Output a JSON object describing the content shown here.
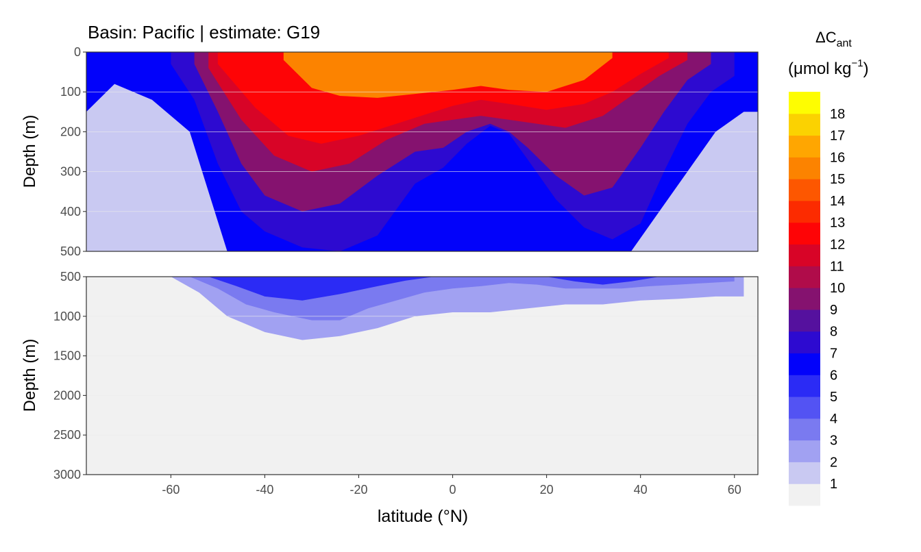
{
  "chart_data": {
    "type": "heatmap",
    "title": "Basin: Pacific | estimate: G19",
    "xlabel": "latitude (°N)",
    "ylabel_top": "Depth (m)",
    "ylabel_bottom": "Depth (m)",
    "x_ticks": [
      "-60",
      "-40",
      "-20",
      "0",
      "20",
      "40",
      "60"
    ],
    "x_tick_values": [
      -60,
      -40,
      -20,
      0,
      20,
      40,
      60
    ],
    "xlim": [
      -78,
      65
    ],
    "top_panel": {
      "ylim": [
        0,
        500
      ],
      "y_ticks": [
        "0",
        "100",
        "200",
        "300",
        "400",
        "500"
      ],
      "y_tick_values": [
        0,
        100,
        200,
        300,
        400,
        500
      ]
    },
    "bottom_panel": {
      "ylim": [
        500,
        3000
      ],
      "y_ticks": [
        "500",
        "1000",
        "1500",
        "2000",
        "2500",
        "3000"
      ],
      "y_tick_values": [
        500,
        1000,
        1500,
        2000,
        2500,
        3000
      ]
    },
    "legend": {
      "title_line1": "ΔC",
      "title_sub": "ant",
      "title_line2": "(μmol kg",
      "title_sup": "−1",
      "title_close": ")",
      "placement": "right",
      "levels": [
        "1",
        "2",
        "3",
        "4",
        "5",
        "6",
        "7",
        "8",
        "9",
        "10",
        "11",
        "12",
        "13",
        "14",
        "15",
        "16",
        "17",
        "18"
      ],
      "colors": [
        "#f1f1f1",
        "#c9c9f2",
        "#a1a1f2",
        "#7a7af0",
        "#5353f3",
        "#2b2bf5",
        "#0202fa",
        "#2d0ad0",
        "#55119e",
        "#85126f",
        "#b00c4a",
        "#d80427",
        "#fe0406",
        "#fc2b00",
        "#fd5700",
        "#fc8300",
        "#ffa601",
        "#fbd201",
        "#fefd01"
      ]
    },
    "top_bands": [
      {
        "level": 6,
        "lat": [
          -78,
          -72,
          -64,
          -56,
          -48,
          -40,
          -32,
          -24,
          -16,
          -8,
          0,
          6,
          10,
          14,
          20,
          26,
          32,
          38,
          44,
          50,
          56,
          62,
          65
        ],
        "depth": [
          150,
          80,
          120,
          200,
          500,
          500,
          500,
          500,
          500,
          500,
          500,
          500,
          500,
          500,
          500,
          500,
          500,
          500,
          400,
          300,
          200,
          150,
          150
        ]
      },
      {
        "level": 7,
        "lat": [
          -60,
          -55,
          -50,
          -45,
          -40,
          -32,
          -24,
          -16,
          -8,
          -2,
          3,
          8,
          12,
          16,
          22,
          28,
          34,
          40,
          45,
          50,
          55,
          60
        ],
        "depth": [
          30,
          120,
          280,
          400,
          450,
          490,
          500,
          460,
          330,
          290,
          230,
          185,
          205,
          270,
          370,
          440,
          470,
          430,
          300,
          180,
          100,
          60
        ]
      },
      {
        "level": 9,
        "lat": [
          -55,
          -50,
          -45,
          -40,
          -32,
          -24,
          -16,
          -8,
          -2,
          3,
          8,
          12,
          16,
          22,
          28,
          34,
          40,
          45,
          50,
          55
        ],
        "depth": [
          30,
          150,
          280,
          360,
          400,
          380,
          310,
          250,
          240,
          200,
          180,
          200,
          240,
          310,
          360,
          340,
          240,
          150,
          70,
          30
        ]
      },
      {
        "level": 11,
        "lat": [
          -52,
          -45,
          -38,
          -30,
          -22,
          -14,
          -6,
          0,
          6,
          12,
          18,
          24,
          32,
          38,
          44,
          50
        ],
        "depth": [
          40,
          170,
          260,
          300,
          280,
          220,
          180,
          170,
          160,
          170,
          180,
          190,
          160,
          110,
          60,
          20
        ]
      },
      {
        "level": 12,
        "lat": [
          -50,
          -42,
          -35,
          -28,
          -20,
          -12,
          -4,
          0,
          6,
          12,
          20,
          28,
          34,
          40,
          46
        ],
        "depth": [
          30,
          140,
          210,
          230,
          210,
          180,
          150,
          135,
          120,
          130,
          145,
          130,
          100,
          55,
          15
        ]
      },
      {
        "level": 15,
        "lat": [
          -36,
          -30,
          -24,
          -16,
          -8,
          0,
          6,
          12,
          20,
          28,
          34
        ],
        "depth": [
          20,
          90,
          110,
          115,
          105,
          95,
          85,
          95,
          100,
          70,
          15
        ]
      }
    ],
    "bottom_bands": [
      {
        "level": 2,
        "lat": [
          -60,
          -54,
          -48,
          -40,
          -32,
          -24,
          -16,
          -8,
          0,
          8,
          16,
          24,
          32,
          40,
          48,
          56,
          62
        ],
        "depth": [
          500,
          700,
          1000,
          1200,
          1300,
          1250,
          1150,
          1000,
          950,
          950,
          900,
          850,
          850,
          800,
          780,
          750,
          750
        ]
      },
      {
        "level": 3,
        "lat": [
          -56,
          -50,
          -44,
          -38,
          -30,
          -24,
          -18,
          -12,
          -6,
          0,
          6,
          12,
          18,
          24,
          30,
          36,
          42,
          48,
          54,
          60
        ],
        "depth": [
          500,
          650,
          850,
          950,
          1050,
          1050,
          900,
          800,
          700,
          650,
          620,
          580,
          600,
          650,
          650,
          650,
          620,
          600,
          580,
          560
        ]
      },
      {
        "level": 5,
        "lat": [
          -52,
          -46,
          -40,
          -32,
          -24,
          -16,
          -10,
          -4,
          20,
          26,
          32,
          38,
          44
        ],
        "depth": [
          500,
          620,
          750,
          800,
          720,
          620,
          550,
          500,
          500,
          560,
          600,
          560,
          500
        ]
      }
    ]
  }
}
